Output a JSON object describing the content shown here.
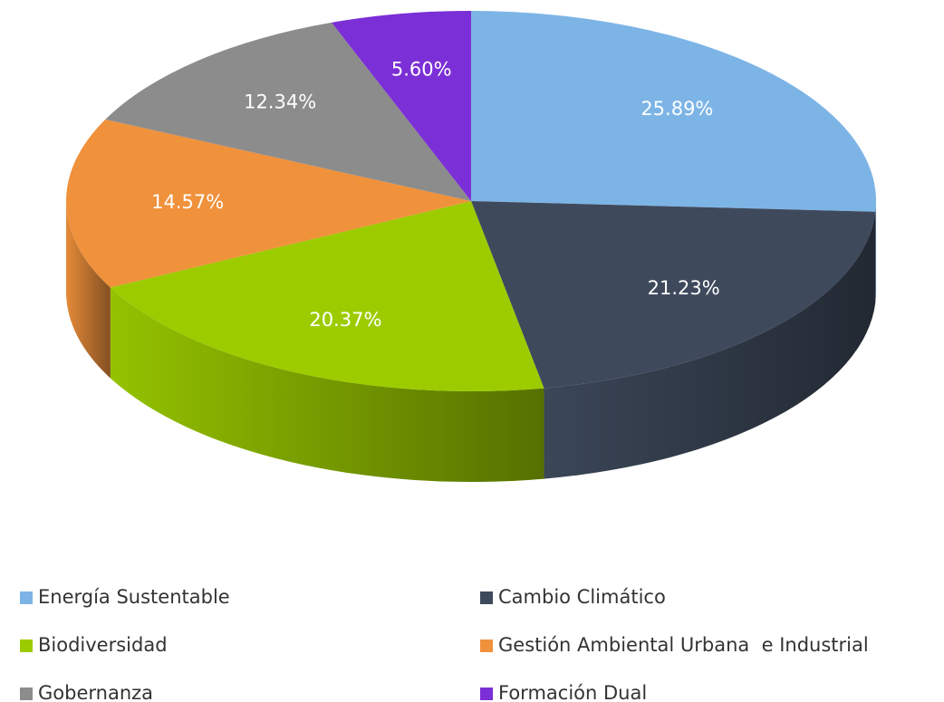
{
  "chart_data": {
    "type": "pie",
    "categories": [
      "Energía Sustentable",
      "Cambio Climático",
      "Biodiversidad",
      "Gestión Ambiental Urbana  e Industrial",
      "Gobernanza",
      "Formación Dual"
    ],
    "series": [
      {
        "values": [
          25.89,
          21.23,
          20.37,
          14.57,
          12.34,
          5.6
        ],
        "value_labels": [
          "25.89%",
          "21.23%",
          "20.37%",
          "14.57%",
          "12.34%",
          "5.60%"
        ],
        "colors": [
          "#7db4e6",
          "#3e4a5c",
          "#9ccc00",
          "#f0913c",
          "#8c8c8c",
          "#7b2fd6"
        ]
      }
    ],
    "legend": "bottom"
  }
}
